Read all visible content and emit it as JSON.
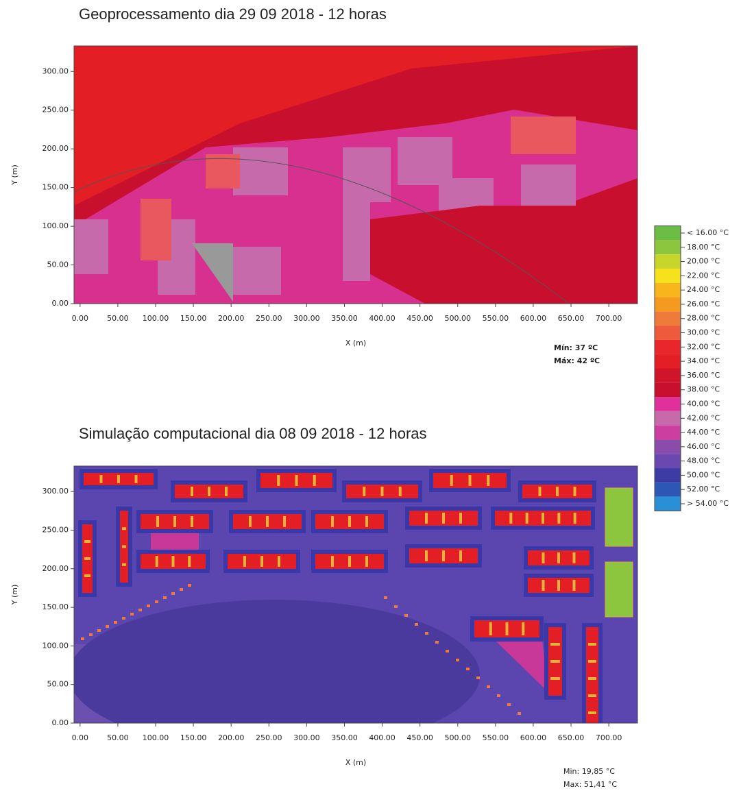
{
  "chart_data": [
    {
      "type": "heatmap",
      "title": "Geoprocessamento dia 29 09 2018 - 12 horas",
      "xlabel": "X (m)",
      "ylabel": "Y (m)",
      "xlim": [
        -8,
        738
      ],
      "ylim": [
        0,
        333
      ],
      "xticks": [
        {
          "value": 0,
          "label": "0.00"
        },
        {
          "value": 50,
          "label": "50.00"
        },
        {
          "value": 100,
          "label": "100.00"
        },
        {
          "value": 150,
          "label": "150.00"
        },
        {
          "value": 200,
          "label": "200.00"
        },
        {
          "value": 250,
          "label": "250.00"
        },
        {
          "value": 300,
          "label": "300.00"
        },
        {
          "value": 350,
          "label": "350.00"
        },
        {
          "value": 400,
          "label": "400.00"
        },
        {
          "value": 450,
          "label": "450.00"
        },
        {
          "value": 500,
          "label": "500.00"
        },
        {
          "value": 550,
          "label": "550.00"
        },
        {
          "value": 600,
          "label": "600.00"
        },
        {
          "value": 650,
          "label": "650.00"
        },
        {
          "value": 700,
          "label": "700.00"
        }
      ],
      "yticks": [
        {
          "value": 0,
          "label": "0.00"
        },
        {
          "value": 50,
          "label": "50.00"
        },
        {
          "value": 100,
          "label": "100.00"
        },
        {
          "value": 150,
          "label": "150.00"
        },
        {
          "value": 200,
          "label": "200.00"
        },
        {
          "value": 250,
          "label": "250.00"
        },
        {
          "value": 300,
          "label": "300.00"
        }
      ],
      "annotations": [
        "Mín: 37 ºC",
        "Máx: 42 ºC"
      ]
    },
    {
      "type": "heatmap",
      "title": "Simulação computacional dia 08 09 2018 - 12 horas",
      "xlabel": "X (m)",
      "ylabel": "Y (m)",
      "xlim": [
        -8,
        738
      ],
      "ylim": [
        0,
        333
      ],
      "xticks": [
        {
          "value": 0,
          "label": "0.00"
        },
        {
          "value": 50,
          "label": "50.00"
        },
        {
          "value": 100,
          "label": "100.00"
        },
        {
          "value": 150,
          "label": "150.00"
        },
        {
          "value": 200,
          "label": "200.00"
        },
        {
          "value": 250,
          "label": "250.00"
        },
        {
          "value": 300,
          "label": "300.00"
        },
        {
          "value": 350,
          "label": "350.00"
        },
        {
          "value": 400,
          "label": "400.00"
        },
        {
          "value": 450,
          "label": "450.00"
        },
        {
          "value": 500,
          "label": "500.00"
        },
        {
          "value": 550,
          "label": "550.00"
        },
        {
          "value": 600,
          "label": "600.00"
        },
        {
          "value": 650,
          "label": "650.00"
        },
        {
          "value": 700,
          "label": "700.00"
        }
      ],
      "yticks": [
        {
          "value": 0,
          "label": "0.00"
        },
        {
          "value": 50,
          "label": "50.00"
        },
        {
          "value": 100,
          "label": "100.00"
        },
        {
          "value": 150,
          "label": "150.00"
        },
        {
          "value": 200,
          "label": "200.00"
        },
        {
          "value": 250,
          "label": "250.00"
        },
        {
          "value": 300,
          "label": "300.00"
        }
      ],
      "annotations": [
        "Min: 19,85 °C",
        "Max: 51,41 °C"
      ]
    }
  ],
  "colorbar": {
    "ticks": [
      {
        "value": 16,
        "label": "< 16.00 °C"
      },
      {
        "value": 18,
        "label": "18.00  °C"
      },
      {
        "value": 20,
        "label": "20.00  °C"
      },
      {
        "value": 22,
        "label": "22.00  °C"
      },
      {
        "value": 24,
        "label": "24.00  °C"
      },
      {
        "value": 26,
        "label": "26.00  °C"
      },
      {
        "value": 28,
        "label": "28.00  °C"
      },
      {
        "value": 30,
        "label": "30.00  °C"
      },
      {
        "value": 32,
        "label": "32.00  °C"
      },
      {
        "value": 34,
        "label": "34.00  °C"
      },
      {
        "value": 36,
        "label": "36.00  °C"
      },
      {
        "value": 38,
        "label": "38.00  °C"
      },
      {
        "value": 40,
        "label": "40.00  °C"
      },
      {
        "value": 42,
        "label": "42.00  °C"
      },
      {
        "value": 44,
        "label": "44.00  °C"
      },
      {
        "value": 46,
        "label": "46.00  °C"
      },
      {
        "value": 48,
        "label": "48.00  °C"
      },
      {
        "value": 50,
        "label": "50.00  °C"
      },
      {
        "value": 52,
        "label": "52.00  °C"
      },
      {
        "value": 54,
        "label": "> 54.00 °C"
      }
    ],
    "colors": [
      "#6cbd45",
      "#8cc63f",
      "#c8d62b",
      "#f5e21b",
      "#f8b51c",
      "#f39a1f",
      "#ef7b3a",
      "#ee5a3c",
      "#e9262b",
      "#e31e24",
      "#d0152a",
      "#c8102e",
      "#e0309a",
      "#c76aac",
      "#cc3fa0",
      "#8a4bab",
      "#6a48b0",
      "#3d3ba4",
      "#2c57b4",
      "#2a8fd6"
    ]
  }
}
